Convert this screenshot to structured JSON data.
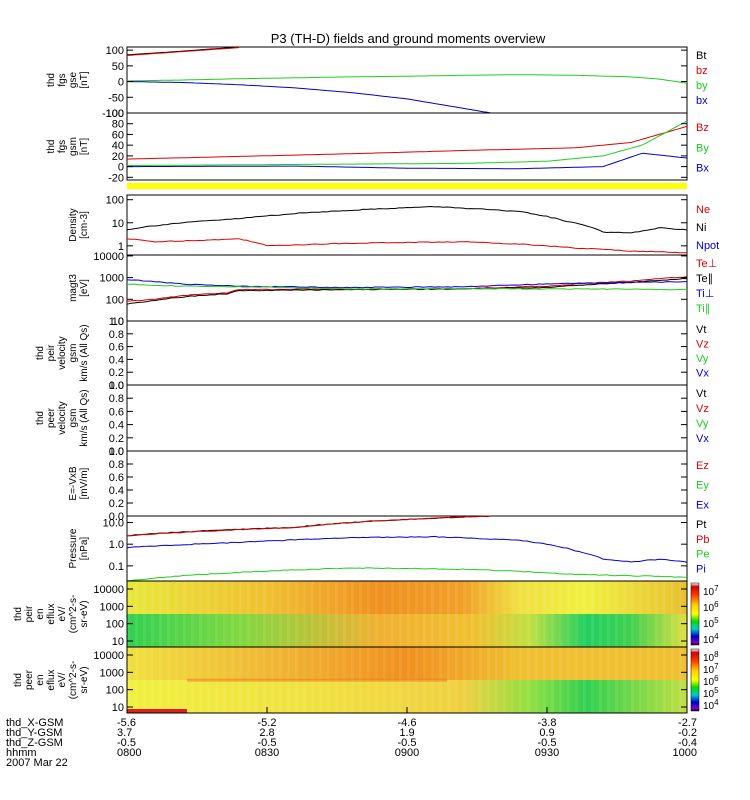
{
  "title": "P3 (TH-D) fields and ground moments overview",
  "colors": {
    "black": "#000000",
    "red": "#dd0000",
    "green": "#22cc22",
    "blue": "#0000cc",
    "yellow": "#ffff00"
  },
  "chart_data": [
    {
      "id": "fgs_gse",
      "type": "line",
      "ylabel_lines": [
        "thd",
        "fgs",
        "gse",
        "[nT]"
      ],
      "ylim": [
        -100,
        110
      ],
      "yticks": [
        "100",
        "50",
        "0",
        "-50",
        "-100"
      ],
      "ytick_values": [
        100,
        50,
        0,
        -50,
        -100
      ],
      "legend": [
        "Bt",
        "bz",
        "by",
        "bx"
      ],
      "series": [
        {
          "name": "Bt",
          "color": "black",
          "x": [
            0,
            0.1,
            0.2
          ],
          "values": [
            85,
            97,
            110
          ]
        },
        {
          "name": "bz",
          "color": "red",
          "x": [
            0,
            0.2
          ],
          "values": [
            83,
            108
          ]
        },
        {
          "name": "by",
          "color": "green",
          "x": [
            0,
            0.1,
            0.2,
            0.3,
            0.4,
            0.5,
            0.6,
            0.7,
            0.8,
            0.9,
            0.95,
            1.0
          ],
          "values": [
            2,
            5,
            9,
            12,
            15,
            17,
            20,
            22,
            20,
            15,
            8,
            -5
          ]
        },
        {
          "name": "bx",
          "color": "blue",
          "x": [
            0,
            0.1,
            0.2,
            0.3,
            0.4,
            0.5,
            0.6,
            0.65
          ],
          "values": [
            0,
            -3,
            -10,
            -20,
            -35,
            -55,
            -85,
            -100
          ]
        }
      ]
    },
    {
      "id": "fgs_gsm",
      "type": "line",
      "ylabel_lines": [
        "thd",
        "fgs",
        "gsm",
        "[nT]"
      ],
      "ylim": [
        -25,
        100
      ],
      "yticks": [
        "100",
        "80",
        "60",
        "40",
        "20",
        "0",
        "-20"
      ],
      "ytick_values": [
        100,
        80,
        60,
        40,
        20,
        0,
        -20
      ],
      "legend": [
        "Bz",
        "By",
        "Bx"
      ],
      "series": [
        {
          "name": "Bz",
          "color": "red",
          "x": [
            0,
            0.2,
            0.4,
            0.6,
            0.8,
            0.9,
            1.0
          ],
          "values": [
            14,
            19,
            24,
            30,
            35,
            45,
            75
          ]
        },
        {
          "name": "By",
          "color": "green",
          "x": [
            0,
            0.3,
            0.6,
            0.75,
            0.85,
            0.92,
            1.0
          ],
          "values": [
            2,
            4,
            6,
            10,
            20,
            40,
            85
          ]
        },
        {
          "name": "Bx",
          "color": "blue",
          "x": [
            0,
            0.3,
            0.5,
            0.7,
            0.85,
            0.92,
            1.0
          ],
          "values": [
            0,
            1,
            -3,
            -4,
            0,
            25,
            16
          ]
        }
      ]
    },
    {
      "id": "density",
      "type": "line",
      "scale": "log",
      "ylabel_lines": [
        "Density",
        "[cm-3]"
      ],
      "ylim": [
        0.4,
        160
      ],
      "yticks": [
        "100",
        "10",
        "1"
      ],
      "ytick_values": [
        100,
        10,
        1
      ],
      "legend": [
        "Ne",
        "Ni",
        "Npot"
      ],
      "series": [
        {
          "name": "Ne",
          "color": "red",
          "x": [
            0,
            0.05,
            0.15,
            0.2,
            0.25,
            0.4,
            0.6,
            0.7,
            0.8,
            0.9,
            1.0
          ],
          "values": [
            2,
            1.5,
            1.8,
            2,
            1,
            1.3,
            1.5,
            1.2,
            0.8,
            0.6,
            0.5
          ]
        },
        {
          "name": "Ni",
          "color": "black",
          "x": [
            0,
            0.2,
            0.4,
            0.55,
            0.7,
            0.78,
            0.85,
            0.9,
            0.95,
            1.0
          ],
          "values": [
            5,
            15,
            35,
            50,
            30,
            12,
            4,
            3.5,
            6,
            5
          ]
        }
      ]
    },
    {
      "id": "temperature",
      "type": "line",
      "scale": "log",
      "ylabel_lines": [
        "magt3",
        "[eV]"
      ],
      "ylim": [
        10,
        11000
      ],
      "yticks": [
        "10000",
        "1000",
        "100",
        "10"
      ],
      "ytick_values": [
        10000,
        1000,
        100,
        10
      ],
      "legend": [
        "Te⊥",
        "Te∥",
        "Ti⊥",
        "Ti∥"
      ],
      "series": [
        {
          "name": "Te⊥",
          "color": "red",
          "x": [
            0,
            0.05,
            0.1,
            0.18,
            0.2,
            0.4,
            0.6,
            0.75,
            0.9,
            1.0
          ],
          "values": [
            80,
            100,
            150,
            200,
            280,
            300,
            310,
            400,
            700,
            1100
          ]
        },
        {
          "name": "Te∥",
          "color": "black",
          "x": [
            0,
            0.05,
            0.1,
            0.18,
            0.2,
            0.4,
            0.6,
            0.75,
            0.9,
            1.0
          ],
          "values": [
            60,
            90,
            130,
            180,
            250,
            280,
            300,
            350,
            600,
            900
          ]
        },
        {
          "name": "Ti⊥",
          "color": "blue",
          "x": [
            0,
            0.1,
            0.2,
            0.4,
            0.6,
            0.8,
            1.0
          ],
          "values": [
            800,
            500,
            400,
            350,
            380,
            550,
            650
          ]
        },
        {
          "name": "Ti∥",
          "color": "green",
          "x": [
            0,
            0.1,
            0.2,
            0.4,
            0.6,
            0.8,
            1.0
          ],
          "values": [
            500,
            400,
            380,
            300,
            310,
            300,
            280
          ]
        }
      ]
    },
    {
      "id": "peir_velocity",
      "type": "line",
      "ylabel_lines": [
        "thd",
        "peir",
        "velocity",
        "gsm",
        "km/s (All Qs)"
      ],
      "ylim": [
        0,
        1
      ],
      "yticks": [
        "1.0",
        "0.8",
        "0.6",
        "0.4",
        "0.2",
        "0.0"
      ],
      "ytick_values": [
        1,
        0.8,
        0.6,
        0.4,
        0.2,
        0
      ],
      "legend": [
        "Vt",
        "Vz",
        "Vy",
        "Vx"
      ],
      "series": []
    },
    {
      "id": "peer_velocity",
      "type": "line",
      "ylabel_lines": [
        "thd",
        "peer",
        "velocity",
        "gsm",
        "km/s (All Qs)"
      ],
      "ylim": [
        0,
        1
      ],
      "yticks": [
        "1.0",
        "0.8",
        "0.6",
        "0.4",
        "0.2",
        "0.0"
      ],
      "ytick_values": [
        1,
        0.8,
        0.6,
        0.4,
        0.2,
        0
      ],
      "legend": [
        "Vt",
        "Vz",
        "Vy",
        "Vx"
      ],
      "series": []
    },
    {
      "id": "efield",
      "type": "line",
      "ylabel_lines": [
        "E=-VxB",
        "[mV/m]"
      ],
      "ylim": [
        0,
        1
      ],
      "yticks": [
        "1.0",
        "0.8",
        "0.6",
        "0.4",
        "0.2",
        "0.0"
      ],
      "ytick_values": [
        1,
        0.8,
        0.6,
        0.4,
        0.2,
        0
      ],
      "legend": [
        "Ez",
        "Ey",
        "Ex"
      ],
      "series": []
    },
    {
      "id": "pressure",
      "type": "line",
      "scale": "log",
      "ylabel_lines": [
        "Pressure",
        "[nPa]"
      ],
      "ylim": [
        0.02,
        20
      ],
      "yticks": [
        "10.0",
        "1.0",
        "0.1"
      ],
      "ytick_values": [
        10,
        1,
        0.1
      ],
      "legend": [
        "Pt",
        "Pb",
        "Pe",
        "Pi"
      ],
      "series": [
        {
          "name": "Pt",
          "color": "black",
          "x": [
            0,
            0.3,
            0.65
          ],
          "values": [
            2.5,
            6,
            20
          ]
        },
        {
          "name": "Pb",
          "color": "red",
          "x": [
            0,
            0.3,
            0.65
          ],
          "values": [
            2.4,
            5.8,
            20
          ]
        },
        {
          "name": "Pi",
          "color": "blue",
          "x": [
            0,
            0.2,
            0.4,
            0.55,
            0.7,
            0.8,
            0.85,
            0.9,
            0.95,
            1.0
          ],
          "values": [
            0.7,
            1.2,
            2,
            2.2,
            1.5,
            0.5,
            0.2,
            0.15,
            0.2,
            0.15
          ]
        },
        {
          "name": "Pe",
          "color": "green",
          "x": [
            0,
            0.2,
            0.4,
            0.6,
            0.8,
            1.0
          ],
          "values": [
            0.02,
            0.05,
            0.08,
            0.07,
            0.04,
            0.03
          ]
        }
      ]
    },
    {
      "id": "peir_eflux",
      "type": "heatmap",
      "ylabel_lines": [
        "thd",
        "peir",
        "en",
        "eflux",
        "eV/",
        "(cm^2-s-",
        "sr-eV)"
      ],
      "yticks": [
        "10000",
        "1000",
        "100",
        "10"
      ],
      "colorbar_labels": [
        "10^7",
        "10^6",
        "10^5",
        "10^4"
      ]
    },
    {
      "id": "peer_eflux",
      "type": "heatmap",
      "ylabel_lines": [
        "thd",
        "peer",
        "en",
        "eflux",
        "eV/",
        "(cm^2-s-",
        "sr-eV)"
      ],
      "yticks": [
        "10000",
        "1000",
        "100",
        "10"
      ],
      "colorbar_labels": [
        "10^8",
        "10^7",
        "10^6",
        "10^5",
        "10^4"
      ]
    }
  ],
  "x_axis": {
    "rows": [
      {
        "label": "thd_X-GSM",
        "values": [
          "-5.6",
          "-5.2",
          "-4.6",
          "-3.8",
          "-2.7"
        ]
      },
      {
        "label": "thd_Y-GSM",
        "values": [
          "3.7",
          "2.8",
          "1.9",
          "0.9",
          "-0.2"
        ]
      },
      {
        "label": "thd_Z-GSM",
        "values": [
          "-0.5",
          "-0.5",
          "-0.5",
          "-0.5",
          "-0.4"
        ]
      },
      {
        "label": "hhmm",
        "values": [
          "0800",
          "0830",
          "0900",
          "0930",
          "1000"
        ]
      }
    ],
    "date": "2007 Mar 22"
  }
}
